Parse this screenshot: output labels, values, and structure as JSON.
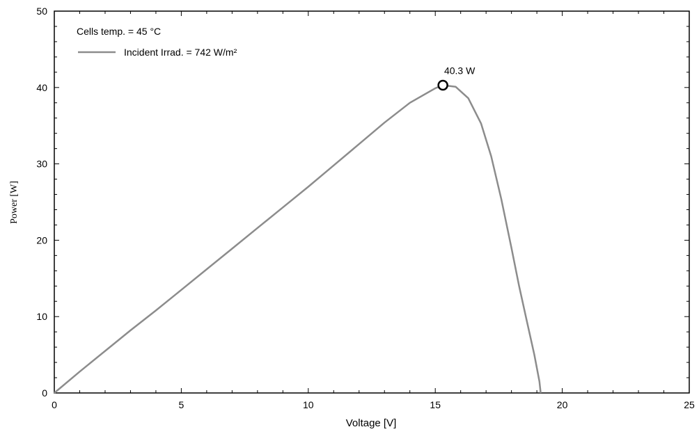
{
  "chart_data": {
    "type": "line",
    "title": "",
    "xlabel": "Voltage [V]",
    "ylabel": "Power [W]",
    "xlim": [
      0,
      25
    ],
    "ylim": [
      0,
      50
    ],
    "x_ticks": [
      0,
      5,
      10,
      15,
      20,
      25
    ],
    "y_ticks": [
      0,
      10,
      20,
      30,
      40,
      50
    ],
    "grid": false,
    "legend": {
      "placement": "top-left",
      "header": "Cells temp. = 45 °C",
      "entries": [
        "Incident Irrad. = 742 W/m²"
      ]
    },
    "series": [
      {
        "name": "Incident Irrad. = 742 W/m²",
        "color": "#8c8c8c",
        "x": [
          0,
          1,
          2,
          3,
          4,
          5,
          6,
          7,
          8,
          9,
          10,
          11,
          12,
          13,
          14,
          15,
          15.3,
          15.8,
          16.3,
          16.8,
          17.2,
          17.6,
          18.0,
          18.3,
          18.6,
          18.9,
          19.1,
          19.15
        ],
        "y": [
          0,
          2.8,
          5.5,
          8.2,
          10.8,
          13.5,
          16.2,
          18.9,
          21.6,
          24.3,
          27.0,
          29.8,
          32.6,
          35.4,
          38.0,
          39.9,
          40.3,
          40.1,
          38.6,
          35.3,
          31.0,
          25.4,
          19.0,
          14.0,
          9.5,
          5.0,
          1.5,
          0
        ]
      }
    ],
    "annotations": [
      {
        "text": "40.3 W",
        "x": 15.3,
        "y": 40.3,
        "marker": "circle"
      }
    ]
  }
}
